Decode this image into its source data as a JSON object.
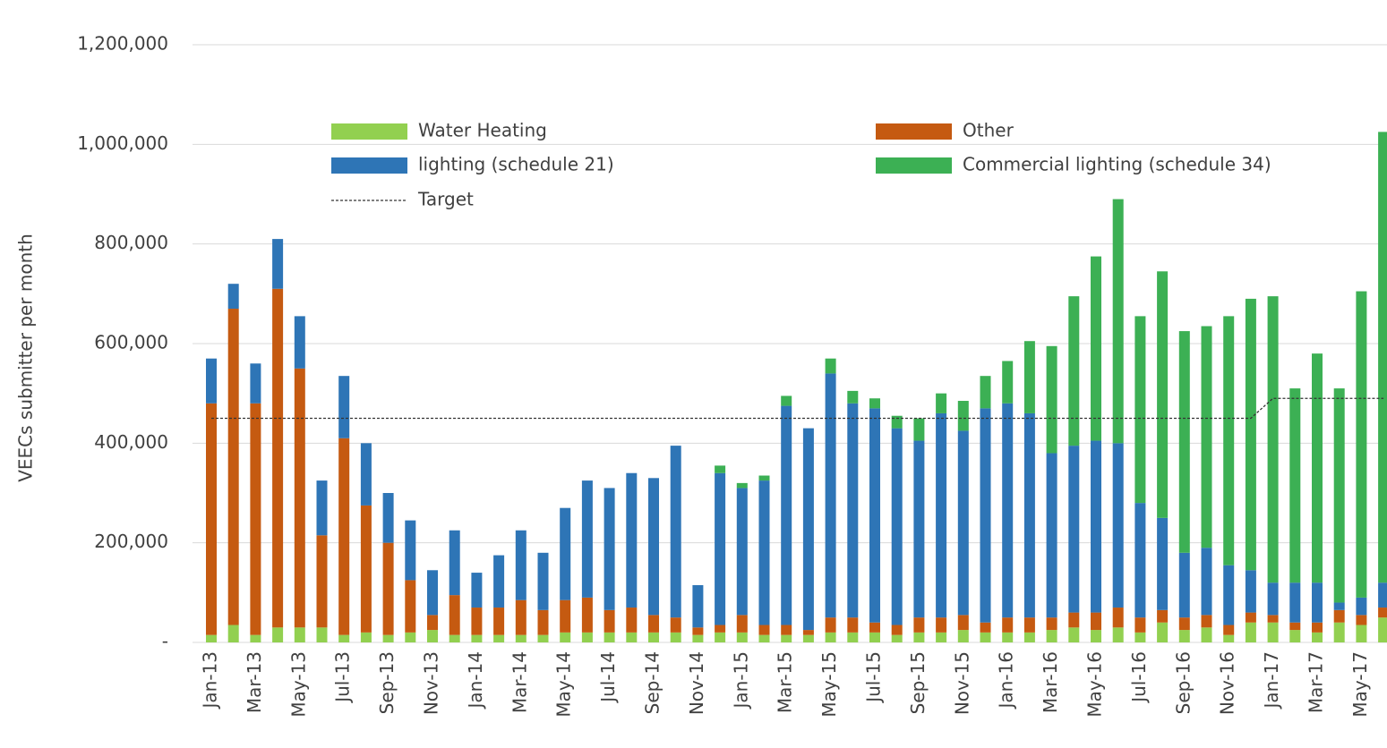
{
  "chart_data": {
    "type": "bar",
    "stacked": true,
    "y_axis_label": "VEECs submitter per month",
    "categories": [
      "Jan-13",
      null,
      "Mar-13",
      null,
      "May-13",
      null,
      "Jul-13",
      null,
      "Sep-13",
      null,
      "Nov-13",
      null,
      "Jan-14",
      null,
      "Mar-14",
      null,
      "May-14",
      null,
      "Jul-14",
      null,
      "Sep-14",
      null,
      "Nov-14",
      null,
      "Jan-15",
      null,
      "Mar-15",
      null,
      "May-15",
      null,
      "Jul-15",
      null,
      "Sep-15",
      null,
      "Nov-15",
      null,
      "Jan-16",
      null,
      "Mar-16",
      null,
      "May-16",
      null,
      "Jul-16",
      null,
      "Sep-16",
      null,
      "Nov-16",
      null,
      "Jan-17",
      null,
      "Mar-17",
      null,
      "May-17",
      null
    ],
    "series": [
      {
        "name": "Water Heating",
        "color": "#92d050",
        "values": [
          15000,
          35000,
          15000,
          30000,
          30000,
          30000,
          15000,
          20000,
          15000,
          20000,
          25000,
          15000,
          15000,
          15000,
          15000,
          15000,
          20000,
          20000,
          20000,
          20000,
          20000,
          20000,
          15000,
          20000,
          20000,
          15000,
          15000,
          15000,
          20000,
          20000,
          20000,
          15000,
          20000,
          20000,
          25000,
          20000,
          20000,
          20000,
          25000,
          30000,
          25000,
          30000,
          20000,
          40000,
          25000,
          30000,
          15000,
          40000,
          40000,
          25000,
          20000,
          40000,
          35000,
          50000
        ]
      },
      {
        "name": "Other",
        "color": "#c55a11",
        "values": [
          465000,
          635000,
          465000,
          680000,
          520000,
          185000,
          395000,
          255000,
          185000,
          105000,
          30000,
          80000,
          55000,
          55000,
          70000,
          50000,
          65000,
          70000,
          45000,
          50000,
          35000,
          30000,
          15000,
          15000,
          35000,
          20000,
          20000,
          10000,
          30000,
          30000,
          20000,
          20000,
          30000,
          30000,
          30000,
          20000,
          30000,
          30000,
          25000,
          30000,
          35000,
          40000,
          30000,
          25000,
          25000,
          25000,
          20000,
          20000,
          15000,
          15000,
          20000,
          25000,
          20000,
          20000
        ]
      },
      {
        "name": "lighting (schedule 21)",
        "color": "#2e75b6",
        "values": [
          90000,
          50000,
          80000,
          100000,
          105000,
          110000,
          125000,
          125000,
          100000,
          120000,
          90000,
          130000,
          70000,
          105000,
          140000,
          115000,
          185000,
          235000,
          245000,
          270000,
          275000,
          345000,
          85000,
          305000,
          255000,
          290000,
          440000,
          405000,
          490000,
          430000,
          430000,
          395000,
          355000,
          410000,
          370000,
          430000,
          430000,
          410000,
          330000,
          335000,
          345000,
          330000,
          230000,
          185000,
          130000,
          135000,
          120000,
          85000,
          65000,
          80000,
          80000,
          15000,
          35000,
          50000
        ]
      },
      {
        "name": "Commercial lighting (schedule 34)",
        "color": "#3cb054",
        "values": [
          0,
          0,
          0,
          0,
          0,
          0,
          0,
          0,
          0,
          0,
          0,
          0,
          0,
          0,
          0,
          0,
          0,
          0,
          0,
          0,
          0,
          0,
          0,
          15000,
          10000,
          10000,
          20000,
          0,
          30000,
          25000,
          20000,
          25000,
          45000,
          40000,
          60000,
          65000,
          85000,
          145000,
          215000,
          300000,
          370000,
          490000,
          375000,
          495000,
          445000,
          445000,
          500000,
          545000,
          575000,
          390000,
          460000,
          430000,
          615000,
          905000
        ]
      },
      {
        "name": "Target",
        "type": "line",
        "line_style": "dashed",
        "color": "#333333",
        "values": [
          450000,
          450000,
          450000,
          450000,
          450000,
          450000,
          450000,
          450000,
          450000,
          450000,
          450000,
          450000,
          450000,
          450000,
          450000,
          450000,
          450000,
          450000,
          450000,
          450000,
          450000,
          450000,
          450000,
          450000,
          450000,
          450000,
          450000,
          450000,
          450000,
          450000,
          450000,
          450000,
          450000,
          450000,
          450000,
          450000,
          450000,
          450000,
          450000,
          450000,
          450000,
          450000,
          450000,
          450000,
          450000,
          450000,
          450000,
          450000,
          490000,
          490000,
          490000,
          490000,
          490000,
          490000
        ]
      }
    ],
    "ylim": [
      0,
      1200000
    ],
    "yticks": [
      {
        "value": 0,
        "label": "-"
      },
      {
        "value": 200000,
        "label": "200,000"
      },
      {
        "value": 400000,
        "label": "400,000"
      },
      {
        "value": 600000,
        "label": "600,000"
      },
      {
        "value": 800000,
        "label": "800,000"
      },
      {
        "value": 1000000,
        "label": "1,000,000"
      },
      {
        "value": 1200000,
        "label": "1,200,000"
      }
    ],
    "grid": true,
    "legend_position": "top"
  }
}
